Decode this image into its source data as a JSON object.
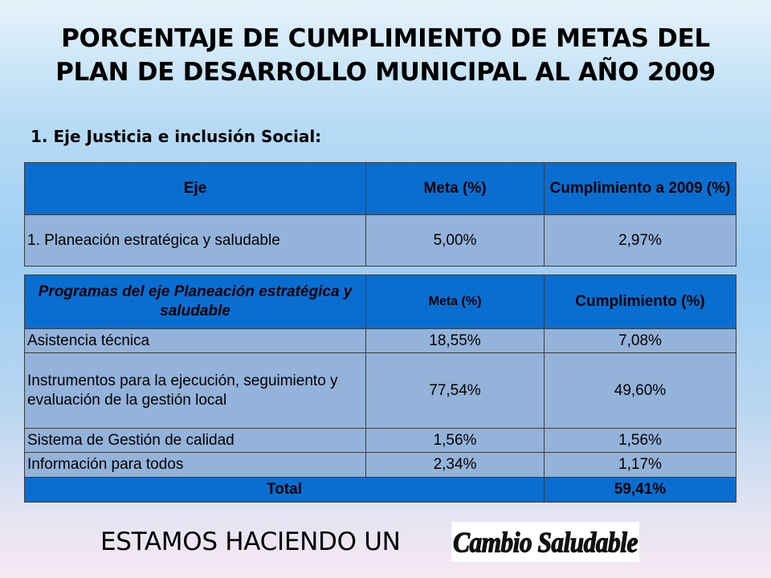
{
  "title_line1": "PORCENTAJE DE CUMPLIMIENTO DE METAS DEL",
  "title_line2": "PLAN DE DESARROLLO MUNICIPAL AL AÑO 2009",
  "subtitle": "1. Eje Justicia e inclusión Social:",
  "eje_table": {
    "headers": {
      "eje": "Eje",
      "meta": "Meta (%)",
      "cumplimiento": "Cumplimiento a 2009 (%)"
    },
    "rows": [
      {
        "eje": "1. Planeación estratégica y saludable",
        "meta": "5,00%",
        "cumplimiento": "2,97%"
      }
    ]
  },
  "programs_table": {
    "headers": {
      "programa": "Programas del eje Planeación estratégica y saludable",
      "meta": "Meta (%)",
      "cumplimiento": "Cumplimiento (%)"
    },
    "rows": [
      {
        "programa": "Asistencia técnica",
        "meta": "18,55%",
        "cumplimiento": "7,08%"
      },
      {
        "programa": "Instrumentos para  la ejecución, seguimiento y evaluación de la gestión local",
        "meta": "77,54%",
        "cumplimiento": "49,60%"
      },
      {
        "programa": "Sistema de Gestión de calidad",
        "meta": "1,56%",
        "cumplimiento": "1,56%"
      },
      {
        "programa": "Información para todos",
        "meta": "2,34%",
        "cumplimiento": "1,17%"
      }
    ],
    "total": {
      "label": "Total",
      "value": "59,41%"
    }
  },
  "footer": {
    "text": "ESTAMOS HACIENDO UN",
    "logo_text": "Cambio Saludable"
  },
  "colors": {
    "header_blue": "#0a6ed1",
    "cell_blue": "#94b3da"
  }
}
